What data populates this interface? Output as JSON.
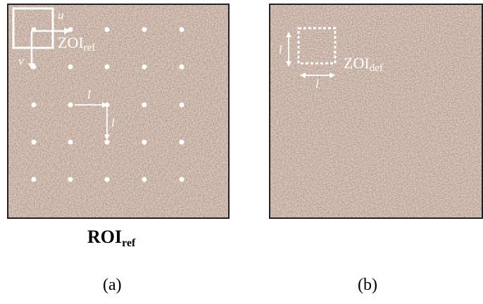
{
  "panel_a": {
    "zoi_label": {
      "main": "ZOI",
      "sub": "ref"
    },
    "u_label": "u",
    "v_label": "v",
    "l_h_label": "l",
    "l_v_label": "l"
  },
  "panel_b": {
    "zoi_label": {
      "main": "ZOI",
      "sub": "def"
    },
    "l_v_label": "l",
    "l_h_label": "l"
  },
  "roi_caption": {
    "main": "ROI",
    "sub": "ref"
  },
  "captions": {
    "a": "(a)",
    "b": "(b)"
  },
  "colors": {
    "speckle_base": "#a08272",
    "overlay": "#ffffff"
  }
}
